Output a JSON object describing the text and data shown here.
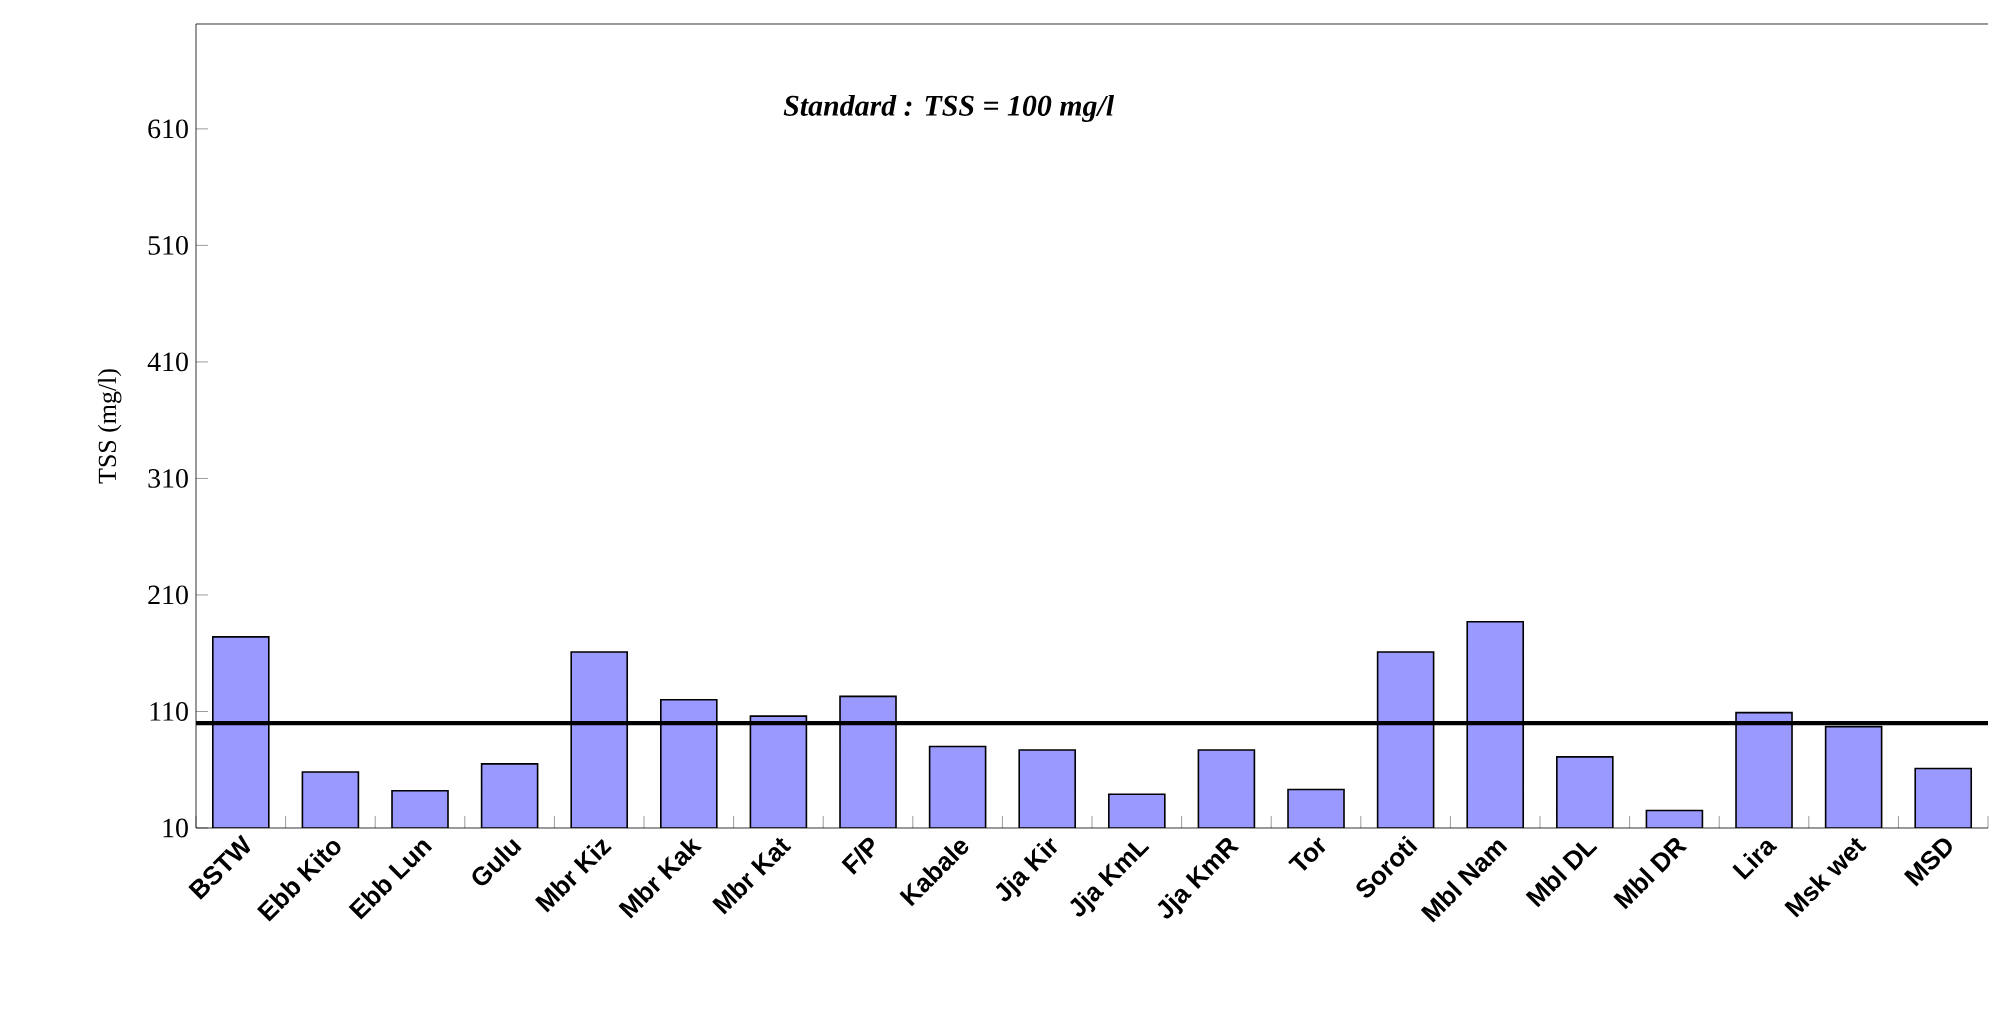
{
  "chart_data": {
    "type": "bar",
    "ylabel": "TSS (mg/l)",
    "annotations": [
      "Standard : TSS = 100 mg/l"
    ],
    "categories": [
      "BSTW",
      "Ebb Kito",
      "Ebb Lun",
      "Gulu",
      "Mbr Kiz",
      "Mbr Kak",
      "Mbr Kat",
      "F/P",
      "Kabale",
      "Jja Kir",
      "Jja KmL",
      "Jja KmR",
      "Tor",
      "Soroti",
      "Mbl Nam",
      "Mbl DL",
      "Mbl DR",
      "Lira",
      "Msk wet",
      "MSD"
    ],
    "values": [
      174,
      58,
      42,
      65,
      161,
      120,
      106,
      123,
      80,
      77,
      39,
      77,
      43,
      161,
      187,
      71,
      25,
      109,
      97,
      61
    ],
    "color": "#9999ff",
    "ylim": [
      10,
      700
    ],
    "yticks": [
      10,
      110,
      210,
      310,
      410,
      510,
      610
    ],
    "ref_lines": [
      {
        "axis": "y",
        "value": 100,
        "color": "#000000"
      }
    ],
    "grid": false
  }
}
